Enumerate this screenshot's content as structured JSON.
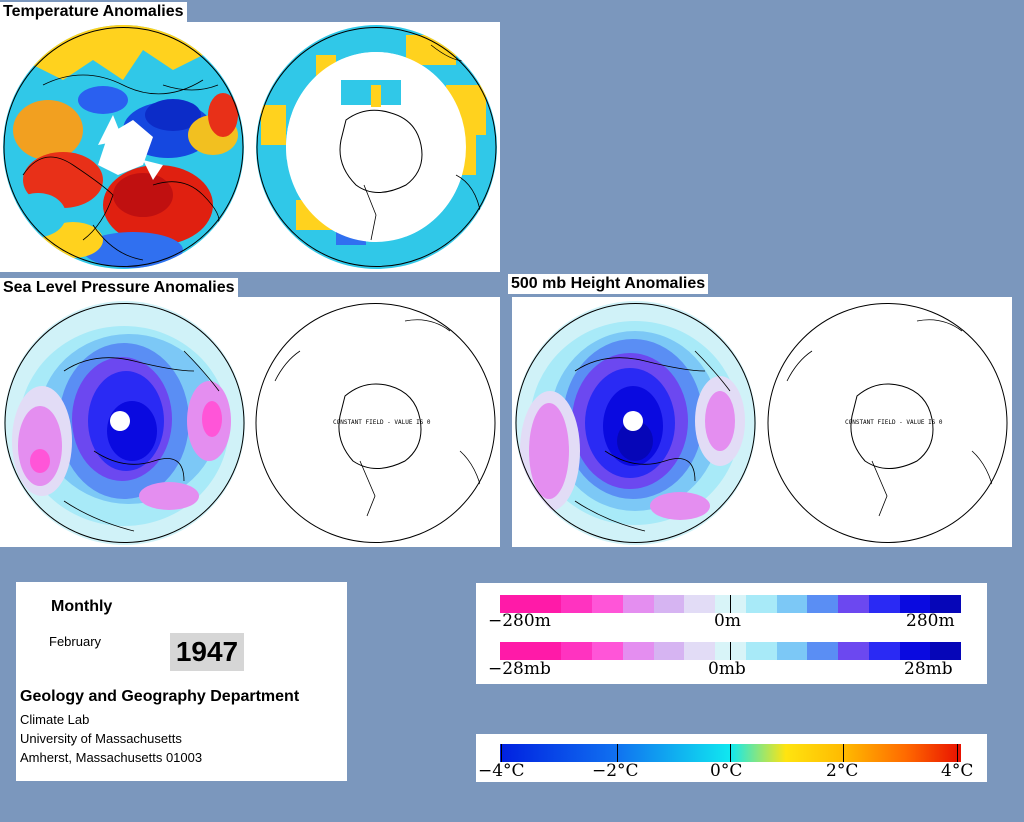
{
  "panels": {
    "temperature": {
      "title": "Temperature Anomalies"
    },
    "slp": {
      "title": "Sea Level Pressure Anomalies",
      "constant_label": "CONSTANT FIELD - VALUE IS 0"
    },
    "height500": {
      "title": "500 mb Height Anomalies",
      "constant_label": "CONSTANT FIELD - VALUE IS 0"
    }
  },
  "info": {
    "period": "Monthly",
    "month": "February",
    "year": "1947",
    "department": "Geology and Geography Department",
    "lab": "Climate Lab",
    "university": "University of Massachusetts",
    "address": "Amherst, Massachusetts 01003"
  },
  "legend_height": {
    "labels": [
      "−280m",
      "0m",
      "280m"
    ],
    "colors": [
      "#ff1aa8",
      "#ff1aa8",
      "#ff33c0",
      "#ff55d8",
      "#e48ef0",
      "#d6b4f2",
      "#e2dcf6",
      "#d8f4f8",
      "#a8eaf8",
      "#7cc8f6",
      "#5a8ef4",
      "#6c48f0",
      "#2a2af4",
      "#0a0ae0",
      "#0606b8"
    ]
  },
  "legend_pressure": {
    "labels": [
      "−28mb",
      "0mb",
      "28mb"
    ],
    "colors": [
      "#ff1aa8",
      "#ff1aa8",
      "#ff33c0",
      "#ff55d8",
      "#e48ef0",
      "#d6b4f2",
      "#e2dcf6",
      "#d8f4f8",
      "#a8eaf8",
      "#7cc8f6",
      "#5a8ef4",
      "#6c48f0",
      "#2a2af4",
      "#0a0ae0",
      "#0606b8"
    ]
  },
  "legend_temperature": {
    "labels": [
      "−4°C",
      "−2°C",
      "0°C",
      "2°C",
      "4°C"
    ]
  },
  "colors": {
    "background": "#7b97bd",
    "warm": "#e02010",
    "cool": "#1040e0"
  }
}
